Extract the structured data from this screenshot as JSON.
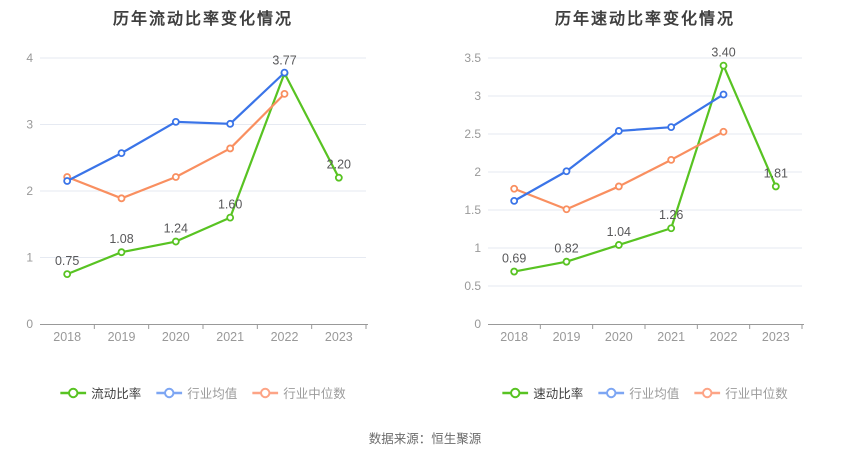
{
  "page": {
    "footer": "数据来源：恒生聚源"
  },
  "colors": {
    "background": "#ffffff",
    "title_text": "#3f3f3f",
    "grid_line": "#e6eaf2",
    "axis_line": "#999999",
    "tick_label": "#999999",
    "data_label": "#58585a",
    "footer_text": "#6b6b6b",
    "legend_active_text": "#404040",
    "legend_inactive_text": "#9b9b9b",
    "series_green": "#58c322",
    "series_blue": "#3a74e8",
    "series_orange": "#f98f60"
  },
  "chart_data": [
    {
      "type": "line",
      "title": "历年流动比率变化情况",
      "categories": [
        "2018",
        "2019",
        "2020",
        "2021",
        "2022",
        "2023"
      ],
      "xlabel": "",
      "ylabel": "",
      "ylim": [
        0,
        4
      ],
      "y_ticks": [
        {
          "value": 0,
          "label": "0"
        },
        {
          "value": 1,
          "label": "1"
        },
        {
          "value": 2,
          "label": "2"
        },
        {
          "value": 3,
          "label": "3"
        },
        {
          "value": 4,
          "label": "4"
        }
      ],
      "grid": true,
      "legend_position": "bottom",
      "series": [
        {
          "name": "流动比率",
          "color": "#58c322",
          "legend_color": "#58c322",
          "values": [
            0.75,
            1.08,
            1.24,
            1.6,
            3.77,
            2.2
          ],
          "labels": [
            "0.75",
            "1.08",
            "1.24",
            "1.60",
            "3.77",
            "2.20"
          ],
          "active": true
        },
        {
          "name": "行业均值",
          "color": "#3a74e8",
          "legend_color": "#7da6f3",
          "values": [
            2.15,
            2.57,
            3.04,
            3.01,
            3.78,
            null
          ],
          "labels": null,
          "active": false
        },
        {
          "name": "行业中位数",
          "color": "#f98f60",
          "legend_color": "#fda486",
          "values": [
            2.21,
            1.89,
            2.21,
            2.64,
            3.46,
            null
          ],
          "labels": null,
          "active": false
        }
      ]
    },
    {
      "type": "line",
      "title": "历年速动比率变化情况",
      "categories": [
        "2018",
        "2019",
        "2020",
        "2021",
        "2022",
        "2023"
      ],
      "xlabel": "",
      "ylabel": "",
      "ylim": [
        0,
        3.5
      ],
      "y_ticks": [
        {
          "value": 0,
          "label": "0"
        },
        {
          "value": 0.5,
          "label": "0.5"
        },
        {
          "value": 1,
          "label": "1"
        },
        {
          "value": 1.5,
          "label": "1.5"
        },
        {
          "value": 2,
          "label": "2"
        },
        {
          "value": 2.5,
          "label": "2.5"
        },
        {
          "value": 3,
          "label": "3"
        },
        {
          "value": 3.5,
          "label": "3.5"
        }
      ],
      "grid": true,
      "legend_position": "bottom",
      "series": [
        {
          "name": "速动比率",
          "color": "#58c322",
          "legend_color": "#58c322",
          "values": [
            0.69,
            0.82,
            1.04,
            1.26,
            3.4,
            1.81
          ],
          "labels": [
            "0.69",
            "0.82",
            "1.04",
            "1.26",
            "3.40",
            "1.81"
          ],
          "active": true
        },
        {
          "name": "行业均值",
          "color": "#3a74e8",
          "legend_color": "#7da6f3",
          "values": [
            1.62,
            2.01,
            2.54,
            2.59,
            3.02,
            null
          ],
          "labels": null,
          "active": false
        },
        {
          "name": "行业中位数",
          "color": "#f98f60",
          "legend_color": "#fda486",
          "values": [
            1.78,
            1.51,
            1.81,
            2.16,
            2.53,
            null
          ],
          "labels": null,
          "active": false
        }
      ]
    }
  ]
}
